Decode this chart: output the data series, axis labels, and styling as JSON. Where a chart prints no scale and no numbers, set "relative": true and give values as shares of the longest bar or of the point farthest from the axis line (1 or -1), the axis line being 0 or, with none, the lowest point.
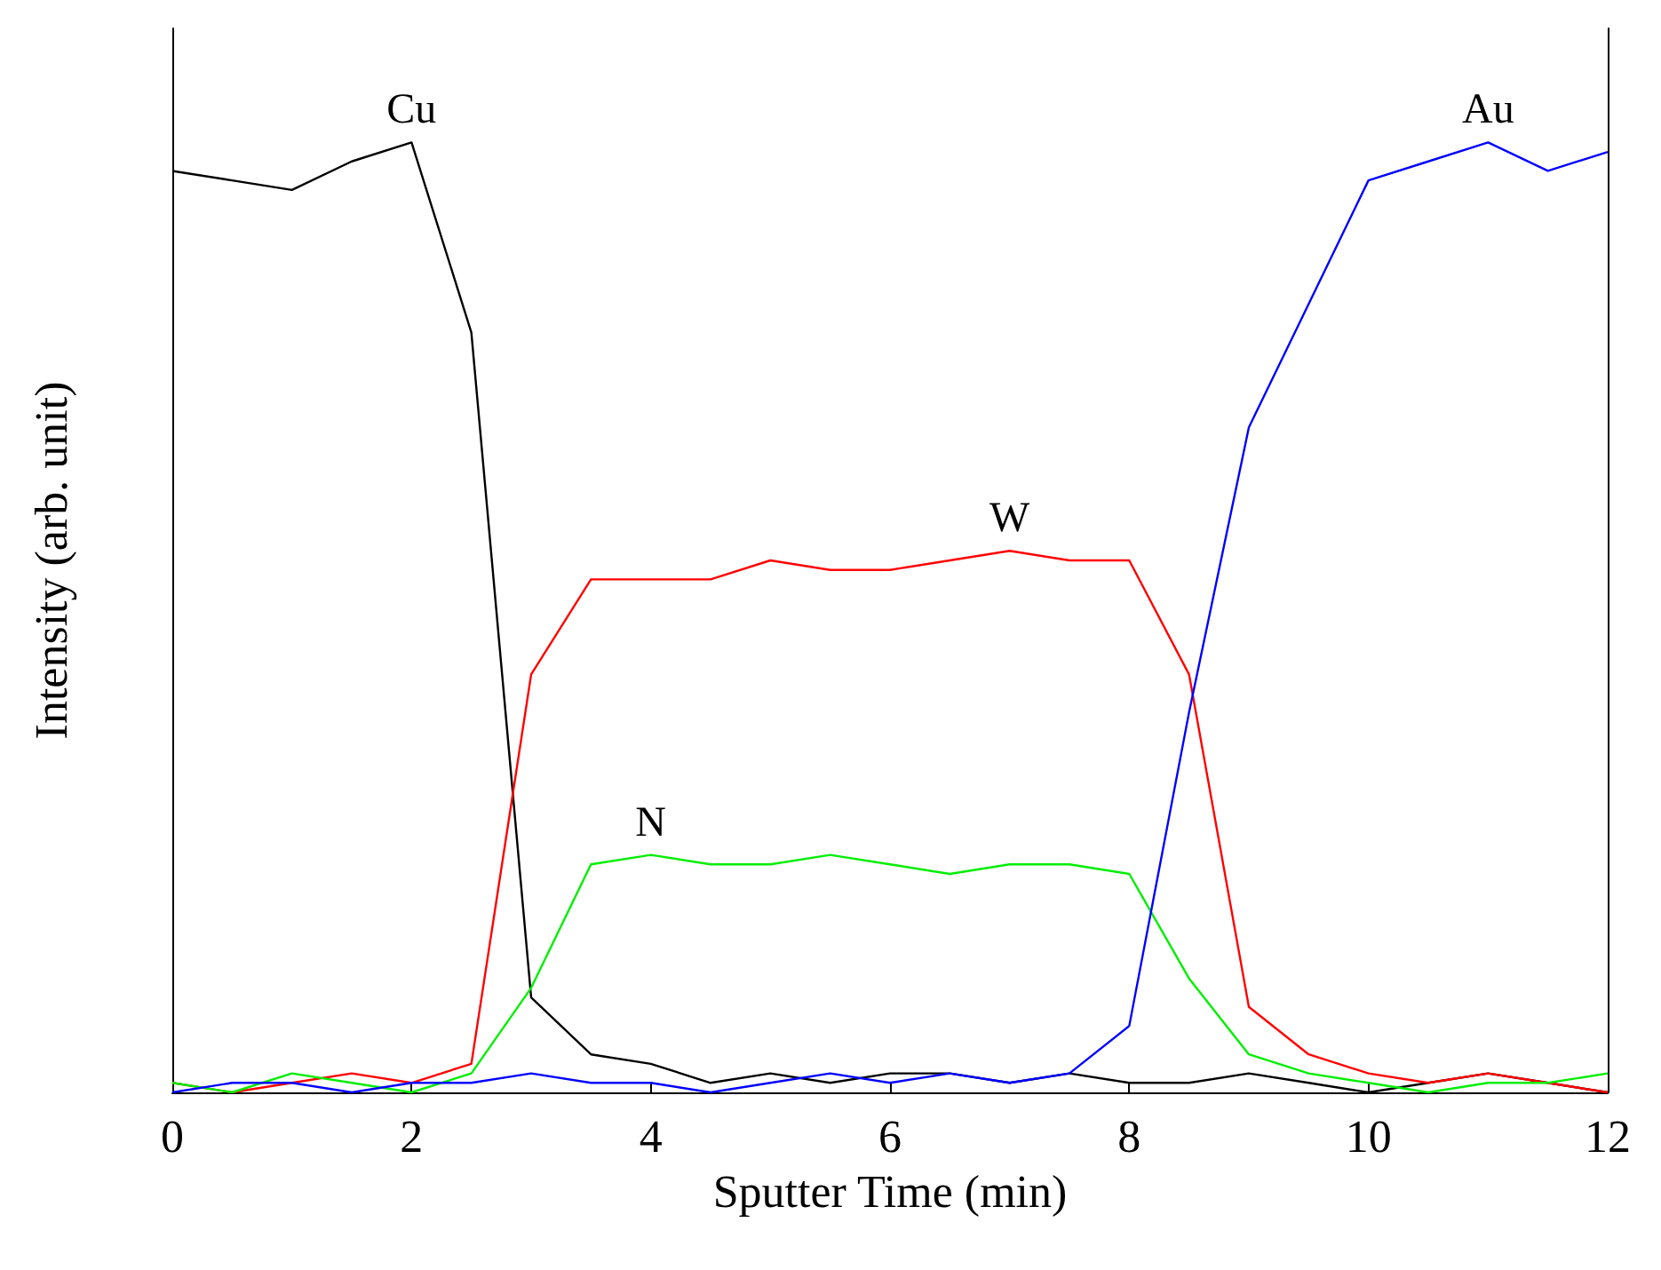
{
  "chart_data": {
    "type": "line",
    "xlabel": "Sputter Time (min)",
    "ylabel": "Intensity (arb. unit)",
    "relative": true,
    "xlim": [
      0,
      12
    ],
    "xticks": [
      0,
      2,
      4,
      6,
      8,
      10,
      12
    ],
    "grid": false,
    "legend": false,
    "marker": "none",
    "line_style": "solid",
    "x": [
      0,
      0.5,
      1,
      1.5,
      2,
      2.5,
      3,
      3.5,
      4,
      4.5,
      5,
      5.5,
      6,
      6.5,
      7,
      7.5,
      8,
      8.5,
      9,
      9.5,
      10,
      10.5,
      11,
      11.5,
      12
    ],
    "series": [
      {
        "name": "Cu",
        "color": "#000000",
        "values": [
          0.97,
          0.96,
          0.95,
          0.98,
          1,
          0.8,
          0.1,
          0.04,
          0.03,
          0.01,
          0.02,
          0.01,
          0.02,
          0.02,
          0.01,
          0.02,
          0.01,
          0.01,
          0.02,
          0.01,
          0,
          0.01,
          0.02,
          0.01,
          0
        ]
      },
      {
        "name": "W",
        "color": "#ff0000",
        "values": [
          0.01,
          0,
          0.01,
          0.02,
          0.01,
          0.03,
          0.44,
          0.54,
          0.54,
          0.54,
          0.56,
          0.55,
          0.55,
          0.56,
          0.57,
          0.56,
          0.56,
          0.44,
          0.09,
          0.04,
          0.02,
          0.01,
          0.02,
          0.01,
          0
        ]
      },
      {
        "name": "N",
        "color": "#00ee00",
        "values": [
          0.01,
          0,
          0.02,
          0.01,
          0,
          0.02,
          0.11,
          0.24,
          0.25,
          0.24,
          0.24,
          0.25,
          0.24,
          0.23,
          0.24,
          0.24,
          0.23,
          0.12,
          0.04,
          0.02,
          0.01,
          0,
          0.01,
          0.01,
          0.02
        ]
      },
      {
        "name": "Au",
        "color": "#0000ff",
        "values": [
          0,
          0.01,
          0.01,
          0,
          0.01,
          0.01,
          0.02,
          0.01,
          0.01,
          0,
          0.01,
          0.02,
          0.01,
          0.02,
          0.01,
          0.02,
          0.07,
          0.4,
          0.7,
          0.83,
          0.96,
          0.98,
          1,
          0.97,
          0.99
        ]
      }
    ]
  }
}
